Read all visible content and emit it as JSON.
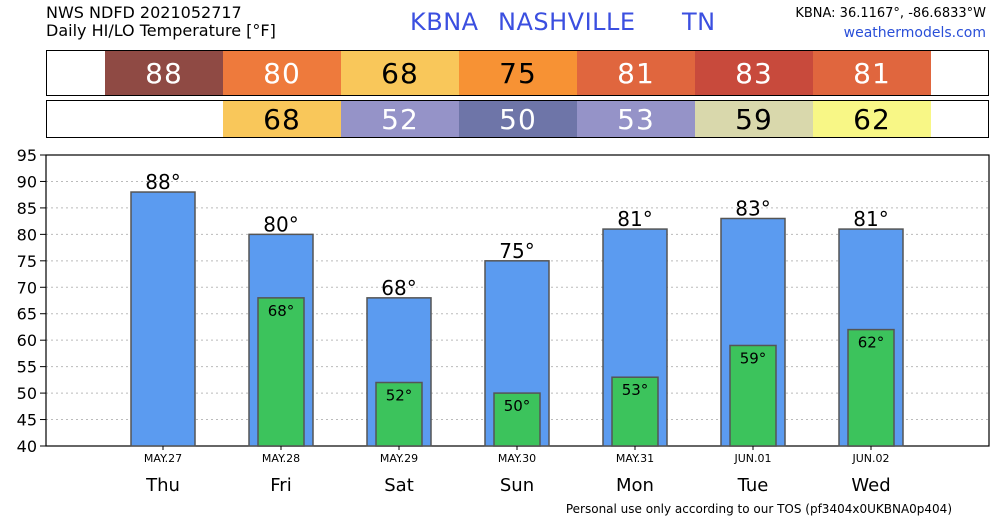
{
  "header": {
    "line1": "NWS NDFD 2021052717",
    "line2": "Daily HI/LO Temperature [°F]",
    "station_code": "KBNA",
    "station_city": "NASHVILLE",
    "station_state": "TN",
    "coords": "KBNA: 36.1167°, -86.6833°W",
    "site": "weathermodels.com"
  },
  "hi_strip": [
    {
      "value": "88",
      "color": "#8f4a44",
      "text_color": "#ffffff"
    },
    {
      "value": "80",
      "color": "#ee7a3c",
      "text_color": "#ffffff"
    },
    {
      "value": "68",
      "color": "#f9c75a",
      "text_color": "#000000"
    },
    {
      "value": "75",
      "color": "#f79234",
      "text_color": "#000000"
    },
    {
      "value": "81",
      "color": "#e0663e",
      "text_color": "#ffffff"
    },
    {
      "value": "83",
      "color": "#c84a3c",
      "text_color": "#ffffff"
    },
    {
      "value": "81",
      "color": "#e0663e",
      "text_color": "#ffffff"
    }
  ],
  "lo_strip": [
    {
      "value": "",
      "color": "#ffffff",
      "text_color": "#000000"
    },
    {
      "value": "68",
      "color": "#f9c75a",
      "text_color": "#000000"
    },
    {
      "value": "52",
      "color": "#9593c8",
      "text_color": "#ffffff"
    },
    {
      "value": "50",
      "color": "#6e75a8",
      "text_color": "#ffffff"
    },
    {
      "value": "53",
      "color": "#9593c8",
      "text_color": "#ffffff"
    },
    {
      "value": "59",
      "color": "#d9d8ac",
      "text_color": "#000000"
    },
    {
      "value": "62",
      "color": "#f8f786",
      "text_color": "#000000"
    }
  ],
  "chart_data": {
    "type": "bar",
    "categories": [
      "Thu",
      "Fri",
      "Sat",
      "Sun",
      "Mon",
      "Tue",
      "Wed"
    ],
    "dates": [
      "MAY.27",
      "MAY.28",
      "MAY.29",
      "MAY.30",
      "MAY.31",
      "JUN.01",
      "JUN.02"
    ],
    "series": [
      {
        "values": [
          88,
          80,
          68,
          75,
          81,
          83,
          81
        ],
        "color": "#5b9bf0"
      },
      {
        "values": [
          null,
          68,
          52,
          50,
          53,
          59,
          62
        ],
        "color": "#3cc35c"
      }
    ],
    "hi_labels": [
      "88°",
      "80°",
      "68°",
      "75°",
      "81°",
      "83°",
      "81°"
    ],
    "lo_labels": [
      "",
      "68°",
      "52°",
      "50°",
      "53°",
      "59°",
      "62°"
    ],
    "ylim": [
      40,
      95
    ],
    "yticks": [
      40,
      45,
      50,
      55,
      60,
      65,
      70,
      75,
      80,
      85,
      90,
      95
    ],
    "grid": true
  },
  "footer": "Personal use only according to our TOS (pf3404x0UKBNA0p404)"
}
